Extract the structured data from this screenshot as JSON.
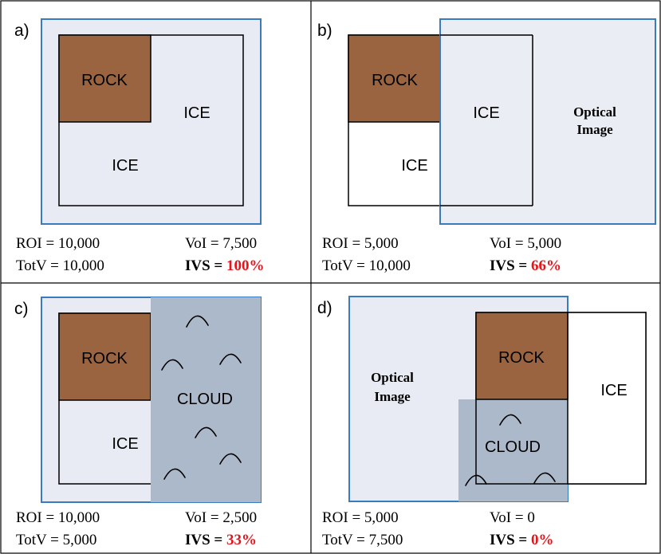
{
  "colors": {
    "rock": "#9a6440",
    "ice_fill": "#e8ebf3",
    "optical_border": "#3a7abf",
    "cloud": "#acb9ca",
    "highlight_red": "#e8141a",
    "grid": "#000000"
  },
  "panels": {
    "a": {
      "letter": "a)",
      "rock_label": "ROCK",
      "ice_label_1": "ICE",
      "ice_label_2": "ICE",
      "stats": {
        "roi": "ROI = 10,000",
        "totv": "TotV = 10,000",
        "voi": "VoI = 7,500",
        "ivs_prefix": "IVS = ",
        "ivs_value": "100%"
      }
    },
    "b": {
      "letter": "b)",
      "rock_label": "ROCK",
      "ice_label_1": "ICE",
      "ice_label_2": "ICE",
      "optical_line1": "Optical",
      "optical_line2": "Image",
      "stats": {
        "roi": "ROI = 5,000",
        "totv": "TotV = 10,000",
        "voi": "VoI = 5,000",
        "ivs_prefix": "IVS = ",
        "ivs_value": "66%"
      }
    },
    "c": {
      "letter": "c)",
      "rock_label": "ROCK",
      "ice_label": "ICE",
      "cloud_label": "CLOUD",
      "stats": {
        "roi": "ROI = 10,000",
        "totv": "TotV = 5,000",
        "voi": "VoI = 2,500",
        "ivs_prefix": "IVS = ",
        "ivs_value": "33%"
      }
    },
    "d": {
      "letter": "d)",
      "rock_label": "ROCK",
      "ice_label": "ICE",
      "cloud_label": "CLOUD",
      "optical_line1": "Optical",
      "optical_line2": "Image",
      "stats": {
        "roi": "ROI = 5,000",
        "totv": "TotV = 7,500",
        "voi": "VoI = 0",
        "ivs_prefix": "IVS = ",
        "ivs_value": "0%"
      }
    }
  }
}
